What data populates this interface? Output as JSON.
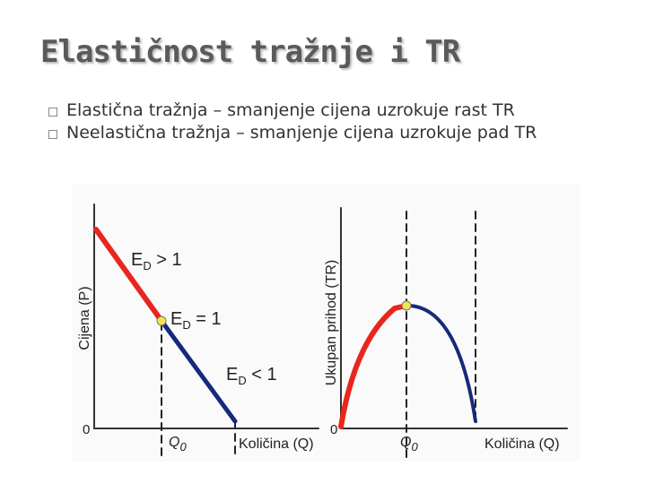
{
  "slide": {
    "title": "Elastičnost tražnje i TR",
    "bullets": [
      "Elastična tražnja – smanjenje cijena uzrokuje rast TR",
      "Neelastična tražnja – smanjenje cijena uzrokuje pad TR"
    ],
    "figure": {
      "left": {
        "y_label": "Cijena (P)",
        "x_label": "Količina (Q)",
        "origin": "0",
        "q0": {
          "main": "Q",
          "sub": "0"
        },
        "elastic": {
          "main": "E",
          "sub": "D",
          "rest": " > 1"
        },
        "unit": {
          "main": "E",
          "sub": "D",
          "rest": " = 1"
        },
        "inelastic": {
          "main": "E",
          "sub": "D",
          "rest": " < 1"
        }
      },
      "right": {
        "y_label": "Ukupan prihod (TR)",
        "x_label": "Količina (Q)",
        "origin": "0",
        "q0": {
          "main": "Q",
          "sub": "0"
        }
      }
    }
  }
}
